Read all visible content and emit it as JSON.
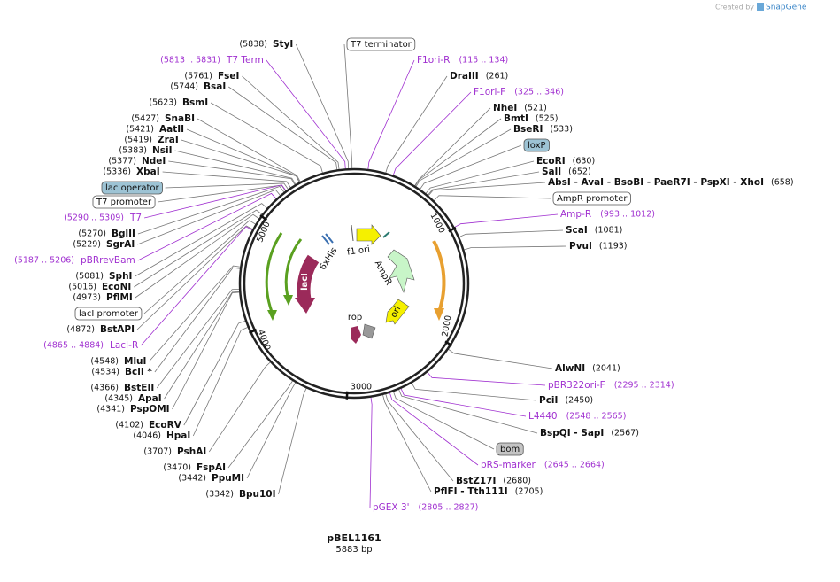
{
  "watermark": {
    "prefix": "Created by",
    "brand": "SnapGene"
  },
  "map": {
    "name": "pBEL1161",
    "size": "5883 bp",
    "ticks": [
      "1000",
      "2000",
      "3000",
      "4000",
      "5000"
    ],
    "features": [
      "f1 ori",
      "AmpR",
      "ori",
      "rop",
      "lacI",
      "6xHis"
    ]
  },
  "left_labels": [
    {
      "pos": "(5838)",
      "name": "StyI"
    },
    {
      "name": "T7 Term",
      "range": "(5813 .. 5831)",
      "color": "#a030d0"
    },
    {
      "pos": "(5761)",
      "name": "FseI"
    },
    {
      "pos": "(5744)",
      "name": "BsaI"
    },
    {
      "pos": "(5623)",
      "name": "BsmI"
    },
    {
      "pos": "(5427)",
      "name": "SnaBI"
    },
    {
      "pos": "(5421)",
      "name": "AatII"
    },
    {
      "pos": "(5419)",
      "name": "ZraI"
    },
    {
      "pos": "(5383)",
      "name": "NsiI"
    },
    {
      "pos": "(5377)",
      "name": "NdeI"
    },
    {
      "pos": "(5336)",
      "name": "XbaI"
    },
    {
      "name": "lac operator",
      "box": true,
      "fill": "#9dc3d4"
    },
    {
      "name": "T7 promoter",
      "box": true,
      "fill": "#ffffff"
    },
    {
      "name": "T7",
      "range": "(5290 .. 5309)",
      "color": "#a030d0"
    },
    {
      "pos": "(5270)",
      "name": "BglII"
    },
    {
      "pos": "(5229)",
      "name": "SgrAI"
    },
    {
      "name": "pBRrevBam",
      "range": "(5187 .. 5206)",
      "color": "#a030d0"
    },
    {
      "pos": "(5081)",
      "name": "SphI"
    },
    {
      "pos": "(5016)",
      "name": "EcoNI"
    },
    {
      "pos": "(4973)",
      "name": "PflMI"
    },
    {
      "name": "lacI promoter",
      "box": true,
      "fill": "#ffffff"
    },
    {
      "pos": "(4872)",
      "name": "BstAPI"
    },
    {
      "name": "LacI-R",
      "range": "(4865 .. 4884)",
      "color": "#a030d0"
    },
    {
      "pos": "(4548)",
      "name": "MluI"
    },
    {
      "pos": "(4534)",
      "name": "BclI *"
    },
    {
      "pos": "(4366)",
      "name": "BstEII"
    },
    {
      "pos": "(4345)",
      "name": "ApaI"
    },
    {
      "pos": "(4341)",
      "name": "PspOMI"
    },
    {
      "pos": "(4102)",
      "name": "EcoRV"
    },
    {
      "pos": "(4046)",
      "name": "HpaI"
    },
    {
      "pos": "(3707)",
      "name": "PshAI"
    },
    {
      "pos": "(3470)",
      "name": "FspAI"
    },
    {
      "pos": "(3442)",
      "name": "PpuMI"
    },
    {
      "pos": "(3342)",
      "name": "Bpu10I"
    }
  ],
  "right_labels": [
    {
      "name": "T7 terminator",
      "box": true,
      "fill": "#ffffff"
    },
    {
      "name": "F1ori-R",
      "range": "(115 .. 134)",
      "color": "#a030d0"
    },
    {
      "pos": "(261)",
      "name": "DraIII"
    },
    {
      "name": "F1ori-F",
      "range": "(325 .. 346)",
      "color": "#a030d0"
    },
    {
      "pos": "(521)",
      "name": "NheI"
    },
    {
      "pos": "(525)",
      "name": "BmtI"
    },
    {
      "pos": "(533)",
      "name": "BseRI"
    },
    {
      "name": "loxP",
      "box": true,
      "fill": "#9dc3d4"
    },
    {
      "pos": "(630)",
      "name": "EcoRI"
    },
    {
      "pos": "(652)",
      "name": "SalI"
    },
    {
      "pos": "(658)",
      "name": "AbsI  - AvaI  - BsoBI  - PaeR7I  - PspXI  - XhoI"
    },
    {
      "name": "AmpR promoter",
      "box": true,
      "fill": "#ffffff"
    },
    {
      "name": "Amp-R",
      "range": "(993 .. 1012)",
      "color": "#a030d0"
    },
    {
      "pos": "(1081)",
      "name": "ScaI"
    },
    {
      "pos": "(1193)",
      "name": "PvuI"
    },
    {
      "pos": "(2041)",
      "name": "AlwNI"
    },
    {
      "name": "pBR322ori-F",
      "range": "(2295 .. 2314)",
      "color": "#a030d0"
    },
    {
      "pos": "(2450)",
      "name": "PciI"
    },
    {
      "name": "L4440",
      "range": "(2548 .. 2565)",
      "color": "#a030d0"
    },
    {
      "pos": "(2567)",
      "name": "BspQI  - SapI"
    },
    {
      "name": "bom",
      "box": true,
      "fill": "#c4c4c4"
    },
    {
      "name": "pRS-marker",
      "range": "(2645 .. 2664)",
      "color": "#a030d0"
    },
    {
      "pos": "(2680)",
      "name": "BstZ17I"
    },
    {
      "pos": "(2705)",
      "name": "PflFI  - Tth111I"
    },
    {
      "name": "pGEX 3'",
      "range": "(2805 .. 2827)",
      "color": "#a030d0"
    }
  ]
}
